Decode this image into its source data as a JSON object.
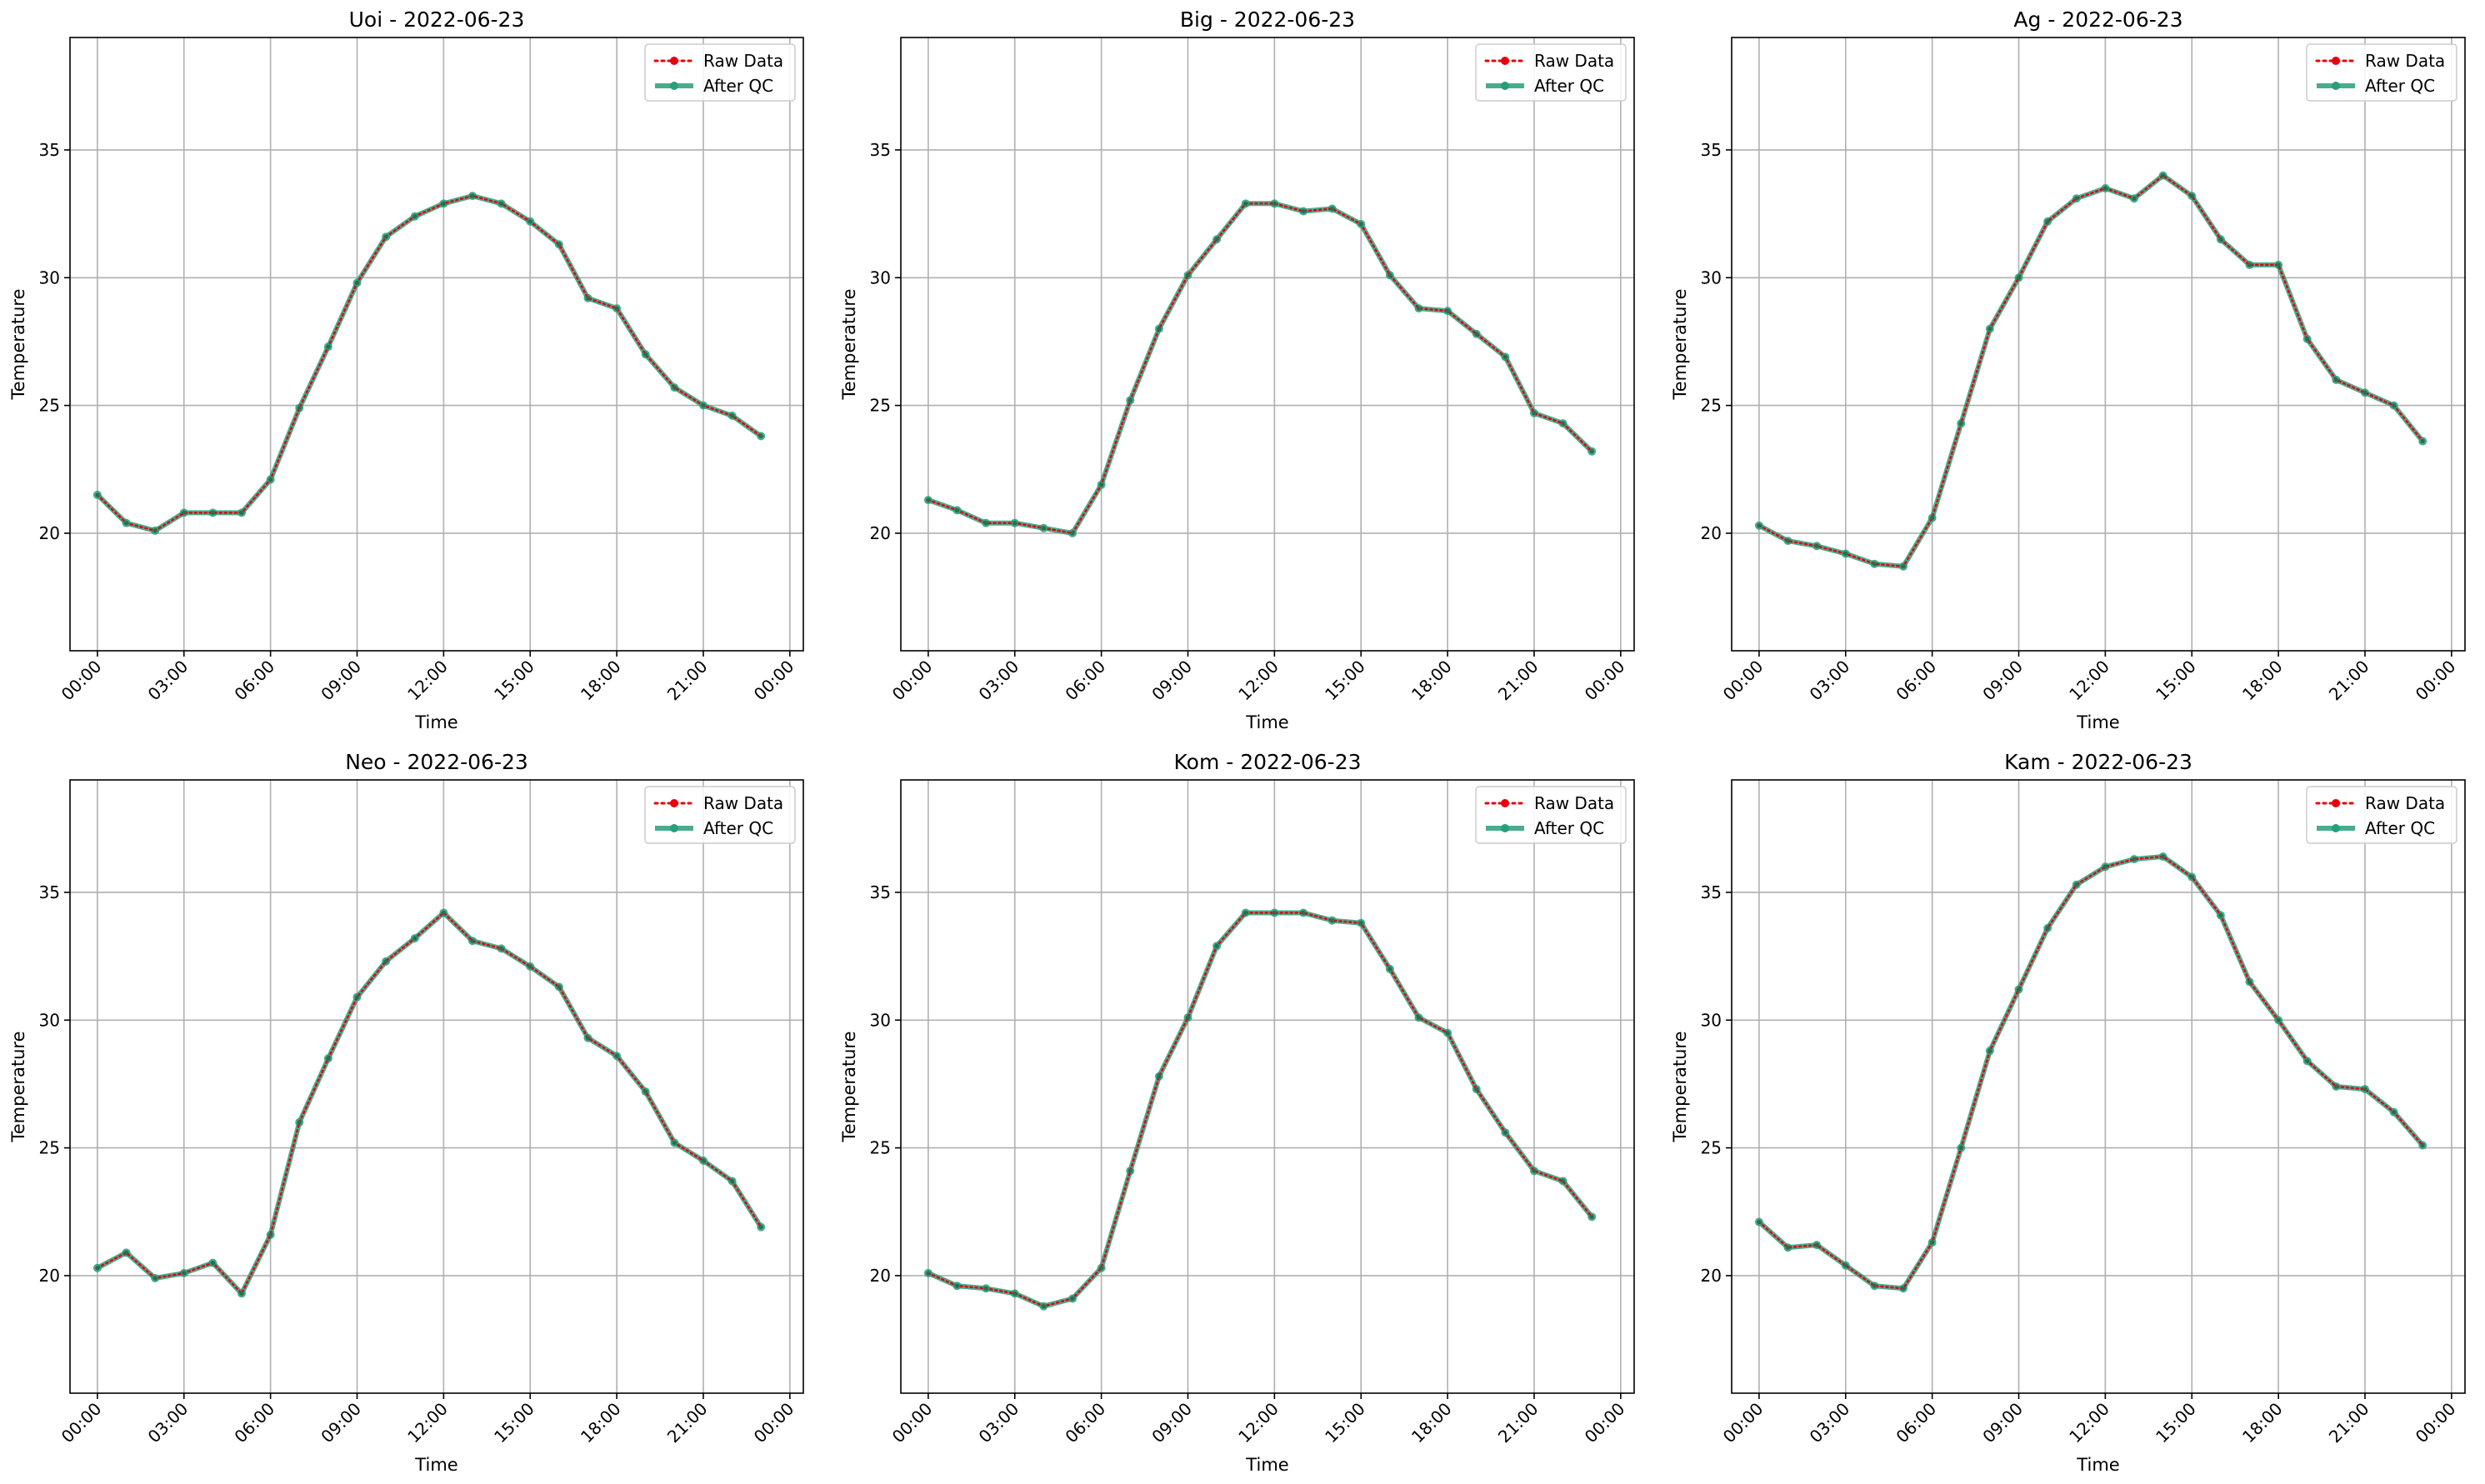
{
  "chart_data": [
    {
      "type": "line",
      "title": "Uoi - 2022-06-23",
      "xlabel": "Time",
      "ylabel": "Temperature",
      "xlim": [
        "23:03",
        "24:28"
      ],
      "ylim": [
        15.4,
        39.4
      ],
      "x_ticks": [
        "00:00",
        "03:00",
        "06:00",
        "09:00",
        "12:00",
        "15:00",
        "18:00",
        "21:00",
        "00:00"
      ],
      "y_ticks": [
        20,
        25,
        30,
        35
      ],
      "grid": true,
      "legend": "top-right",
      "x": [
        "00:00",
        "01:00",
        "02:00",
        "03:00",
        "04:00",
        "05:00",
        "06:00",
        "07:00",
        "08:00",
        "09:00",
        "10:00",
        "11:00",
        "12:00",
        "13:00",
        "14:00",
        "15:00",
        "16:00",
        "17:00",
        "18:00",
        "19:00",
        "20:00",
        "21:00",
        "22:00",
        "23:00"
      ],
      "series": [
        {
          "name": "Raw Data",
          "color": "#e8000b",
          "values": [
            21.5,
            20.4,
            20.1,
            20.8,
            20.8,
            20.8,
            22.1,
            24.9,
            27.3,
            29.8,
            31.6,
            32.4,
            32.9,
            33.2,
            32.9,
            32.2,
            31.3,
            29.2,
            28.8,
            27.0,
            25.7,
            25.0,
            24.6,
            23.8
          ]
        },
        {
          "name": "After QC",
          "color": "#2a9d7a",
          "values": [
            21.5,
            20.4,
            20.1,
            20.8,
            20.8,
            20.8,
            22.1,
            24.9,
            27.3,
            29.8,
            31.6,
            32.4,
            32.9,
            33.2,
            32.9,
            32.2,
            31.3,
            29.2,
            28.8,
            27.0,
            25.7,
            25.0,
            24.6,
            23.8
          ]
        }
      ]
    },
    {
      "type": "line",
      "title": "Big - 2022-06-23",
      "xlabel": "Time",
      "ylabel": "Temperature",
      "xlim": [
        "23:03",
        "24:28"
      ],
      "ylim": [
        15.4,
        39.4
      ],
      "x_ticks": [
        "00:00",
        "03:00",
        "06:00",
        "09:00",
        "12:00",
        "15:00",
        "18:00",
        "21:00",
        "00:00"
      ],
      "y_ticks": [
        20,
        25,
        30,
        35
      ],
      "grid": true,
      "legend": "top-right",
      "x": [
        "00:00",
        "01:00",
        "02:00",
        "03:00",
        "04:00",
        "05:00",
        "06:00",
        "07:00",
        "08:00",
        "09:00",
        "10:00",
        "11:00",
        "12:00",
        "13:00",
        "14:00",
        "15:00",
        "16:00",
        "17:00",
        "18:00",
        "19:00",
        "20:00",
        "21:00",
        "22:00",
        "23:00"
      ],
      "series": [
        {
          "name": "Raw Data",
          "color": "#e8000b",
          "values": [
            21.3,
            20.9,
            20.4,
            20.4,
            20.2,
            20.0,
            21.9,
            25.2,
            28.0,
            30.1,
            31.5,
            32.9,
            32.9,
            32.6,
            32.7,
            32.1,
            30.1,
            28.8,
            28.7,
            27.8,
            26.9,
            24.7,
            24.3,
            23.2
          ]
        },
        {
          "name": "After QC",
          "color": "#2a9d7a",
          "values": [
            21.3,
            20.9,
            20.4,
            20.4,
            20.2,
            20.0,
            21.9,
            25.2,
            28.0,
            30.1,
            31.5,
            32.9,
            32.9,
            32.6,
            32.7,
            32.1,
            30.1,
            28.8,
            28.7,
            27.8,
            26.9,
            24.7,
            24.3,
            23.2
          ]
        }
      ]
    },
    {
      "type": "line",
      "title": "Ag - 2022-06-23",
      "xlabel": "Time",
      "ylabel": "Temperature",
      "xlim": [
        "23:03",
        "24:28"
      ],
      "ylim": [
        15.4,
        39.4
      ],
      "x_ticks": [
        "00:00",
        "03:00",
        "06:00",
        "09:00",
        "12:00",
        "15:00",
        "18:00",
        "21:00",
        "00:00"
      ],
      "y_ticks": [
        20,
        25,
        30,
        35
      ],
      "grid": true,
      "legend": "top-right",
      "x": [
        "00:00",
        "01:00",
        "02:00",
        "03:00",
        "04:00",
        "05:00",
        "06:00",
        "07:00",
        "08:00",
        "09:00",
        "10:00",
        "11:00",
        "12:00",
        "13:00",
        "14:00",
        "15:00",
        "16:00",
        "17:00",
        "18:00",
        "19:00",
        "20:00",
        "21:00",
        "22:00",
        "23:00"
      ],
      "series": [
        {
          "name": "Raw Data",
          "color": "#e8000b",
          "values": [
            20.3,
            19.7,
            19.5,
            19.2,
            18.8,
            18.7,
            20.6,
            24.3,
            28.0,
            30.0,
            32.2,
            33.1,
            33.5,
            33.1,
            34.0,
            33.2,
            31.5,
            30.5,
            30.5,
            27.6,
            26.0,
            25.5,
            25.0,
            23.6
          ]
        },
        {
          "name": "After QC",
          "color": "#2a9d7a",
          "values": [
            20.3,
            19.7,
            19.5,
            19.2,
            18.8,
            18.7,
            20.6,
            24.3,
            28.0,
            30.0,
            32.2,
            33.1,
            33.5,
            33.1,
            34.0,
            33.2,
            31.5,
            30.5,
            30.5,
            27.6,
            26.0,
            25.5,
            25.0,
            23.6
          ]
        }
      ]
    },
    {
      "type": "line",
      "title": "Neo - 2022-06-23",
      "xlabel": "Time",
      "ylabel": "Temperature",
      "xlim": [
        "23:03",
        "24:28"
      ],
      "ylim": [
        15.4,
        39.4
      ],
      "x_ticks": [
        "00:00",
        "03:00",
        "06:00",
        "09:00",
        "12:00",
        "15:00",
        "18:00",
        "21:00",
        "00:00"
      ],
      "y_ticks": [
        20,
        25,
        30,
        35
      ],
      "grid": true,
      "legend": "top-right",
      "x": [
        "00:00",
        "01:00",
        "02:00",
        "03:00",
        "04:00",
        "05:00",
        "06:00",
        "07:00",
        "08:00",
        "09:00",
        "10:00",
        "11:00",
        "12:00",
        "13:00",
        "14:00",
        "15:00",
        "16:00",
        "17:00",
        "18:00",
        "19:00",
        "20:00",
        "21:00",
        "22:00",
        "23:00"
      ],
      "series": [
        {
          "name": "Raw Data",
          "color": "#e8000b",
          "values": [
            20.3,
            20.9,
            19.9,
            20.1,
            20.5,
            19.3,
            21.6,
            26.0,
            28.5,
            30.9,
            32.3,
            33.2,
            34.2,
            33.1,
            32.8,
            32.1,
            31.3,
            29.3,
            28.6,
            27.2,
            25.2,
            24.5,
            23.7,
            21.9
          ]
        },
        {
          "name": "After QC",
          "color": "#2a9d7a",
          "values": [
            20.3,
            20.9,
            19.9,
            20.1,
            20.5,
            19.3,
            21.6,
            26.0,
            28.5,
            30.9,
            32.3,
            33.2,
            34.2,
            33.1,
            32.8,
            32.1,
            31.3,
            29.3,
            28.6,
            27.2,
            25.2,
            24.5,
            23.7,
            21.9
          ]
        }
      ]
    },
    {
      "type": "line",
      "title": "Kom - 2022-06-23",
      "xlabel": "Time",
      "ylabel": "Temperature",
      "xlim": [
        "23:03",
        "24:28"
      ],
      "ylim": [
        15.4,
        39.4
      ],
      "x_ticks": [
        "00:00",
        "03:00",
        "06:00",
        "09:00",
        "12:00",
        "15:00",
        "18:00",
        "21:00",
        "00:00"
      ],
      "y_ticks": [
        20,
        25,
        30,
        35
      ],
      "grid": true,
      "legend": "top-right",
      "x": [
        "00:00",
        "01:00",
        "02:00",
        "03:00",
        "04:00",
        "05:00",
        "06:00",
        "07:00",
        "08:00",
        "09:00",
        "10:00",
        "11:00",
        "12:00",
        "13:00",
        "14:00",
        "15:00",
        "16:00",
        "17:00",
        "18:00",
        "19:00",
        "20:00",
        "21:00",
        "22:00",
        "23:00"
      ],
      "series": [
        {
          "name": "Raw Data",
          "color": "#e8000b",
          "values": [
            20.1,
            19.6,
            19.5,
            19.3,
            18.8,
            19.1,
            20.3,
            24.1,
            27.8,
            30.1,
            32.9,
            34.2,
            34.2,
            34.2,
            33.9,
            33.8,
            32.0,
            30.1,
            29.5,
            27.3,
            25.6,
            24.1,
            23.7,
            22.3
          ]
        },
        {
          "name": "After QC",
          "color": "#2a9d7a",
          "values": [
            20.1,
            19.6,
            19.5,
            19.3,
            18.8,
            19.1,
            20.3,
            24.1,
            27.8,
            30.1,
            32.9,
            34.2,
            34.2,
            34.2,
            33.9,
            33.8,
            32.0,
            30.1,
            29.5,
            27.3,
            25.6,
            24.1,
            23.7,
            22.3
          ]
        }
      ]
    },
    {
      "type": "line",
      "title": "Kam - 2022-06-23",
      "xlabel": "Time",
      "ylabel": "Temperature",
      "xlim": [
        "23:03",
        "24:28"
      ],
      "ylim": [
        15.4,
        39.4
      ],
      "x_ticks": [
        "00:00",
        "03:00",
        "06:00",
        "09:00",
        "12:00",
        "15:00",
        "18:00",
        "21:00",
        "00:00"
      ],
      "y_ticks": [
        20,
        25,
        30,
        35
      ],
      "grid": true,
      "legend": "top-right",
      "x": [
        "00:00",
        "01:00",
        "02:00",
        "03:00",
        "04:00",
        "05:00",
        "06:00",
        "07:00",
        "08:00",
        "09:00",
        "10:00",
        "11:00",
        "12:00",
        "13:00",
        "14:00",
        "15:00",
        "16:00",
        "17:00",
        "18:00",
        "19:00",
        "20:00",
        "21:00",
        "22:00",
        "23:00"
      ],
      "series": [
        {
          "name": "Raw Data",
          "color": "#e8000b",
          "values": [
            22.1,
            21.1,
            21.2,
            20.4,
            19.6,
            19.5,
            21.3,
            25.0,
            28.8,
            31.2,
            33.6,
            35.3,
            36.0,
            36.3,
            36.4,
            35.6,
            34.1,
            31.5,
            30.0,
            28.4,
            27.4,
            27.3,
            26.4,
            25.1
          ]
        },
        {
          "name": "After QC",
          "color": "#2a9d7a",
          "values": [
            22.1,
            21.1,
            21.2,
            20.4,
            19.6,
            19.5,
            21.3,
            25.0,
            28.8,
            31.2,
            33.6,
            35.3,
            36.0,
            36.3,
            36.4,
            35.6,
            34.1,
            31.5,
            30.0,
            28.4,
            27.4,
            27.3,
            26.4,
            25.1
          ]
        }
      ]
    }
  ]
}
